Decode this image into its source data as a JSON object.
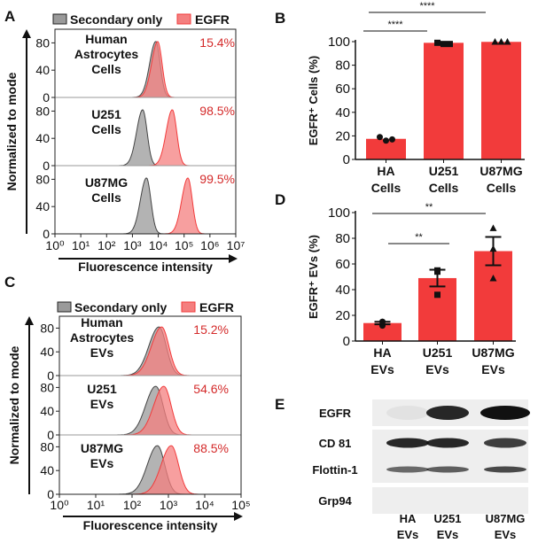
{
  "colors": {
    "red": "#f23b3b",
    "red_fill": "#f47f7f",
    "grey_fill": "#9a9a9a",
    "red_text": "#d42a2a"
  },
  "chart_data": [
    {
      "panel": "A",
      "type": "area",
      "legend": [
        "Secondary only",
        "EGFR"
      ],
      "ylabel": "Normalized to mode",
      "xlabel": "Fluorescence intensity",
      "x_scale": "log",
      "xlim": [
        1,
        10000000
      ],
      "x_ticks": [
        "10⁰",
        "10¹",
        "10²",
        "10³",
        "10⁴",
        "10⁵",
        "10⁶",
        "10⁷"
      ],
      "y_ticks": [
        "0",
        "40",
        "80"
      ],
      "ylim": [
        0,
        100
      ],
      "rows": [
        {
          "label": [
            "Human",
            "Astrocytes",
            "Cells"
          ],
          "percent": "15.4%",
          "secondary_peak": 8000,
          "egfr_peak": 9500
        },
        {
          "label": [
            "U251",
            "Cells"
          ],
          "percent": "98.5%",
          "secondary_peak": 2500,
          "egfr_peak": 35000
        },
        {
          "label": [
            "U87MG",
            "Cells"
          ],
          "percent": "99.5%",
          "secondary_peak": 3500,
          "egfr_peak": 140000
        }
      ]
    },
    {
      "panel": "B",
      "type": "bar",
      "ylabel": "EGFR⁺ Cells  (%)",
      "ylim": [
        0,
        100
      ],
      "y_ticks": [
        "0",
        "20",
        "40",
        "60",
        "80",
        "100"
      ],
      "categories": [
        [
          "HA",
          "Cells"
        ],
        [
          "U251",
          "Cells"
        ],
        [
          "U87MG",
          "Cells"
        ]
      ],
      "values": [
        17.5,
        99,
        99.8
      ],
      "points": [
        [
          19,
          16,
          17
        ],
        [
          99,
          98,
          98
        ],
        [
          100,
          100,
          100
        ]
      ],
      "markers": [
        "circle",
        "square",
        "triangle"
      ],
      "significance": [
        {
          "from": 0,
          "to": 1,
          "label": "****"
        },
        {
          "from": 0,
          "to": 2,
          "label": "****"
        }
      ]
    },
    {
      "panel": "C",
      "type": "area",
      "legend": [
        "Secondary only",
        "EGFR"
      ],
      "ylabel": "Normalized to mode",
      "xlabel": "Fluorescence intensity",
      "x_scale": "log",
      "xlim": [
        1,
        100000
      ],
      "x_ticks": [
        "10⁰",
        "10¹",
        "10²",
        "10³",
        "10⁴",
        "10⁵"
      ],
      "y_ticks": [
        "0",
        "40",
        "80"
      ],
      "ylim": [
        0,
        100
      ],
      "rows": [
        {
          "label": [
            "Human",
            "Astrocytes",
            "EVs"
          ],
          "percent": "15.2%",
          "secondary_peak": 550,
          "egfr_peak": 650
        },
        {
          "label": [
            "U251",
            "EVs"
          ],
          "percent": "54.6%",
          "secondary_peak": 450,
          "egfr_peak": 750
        },
        {
          "label": [
            "U87MG",
            "EVs"
          ],
          "percent": "88.5%",
          "secondary_peak": 500,
          "egfr_peak": 1200
        }
      ]
    },
    {
      "panel": "D",
      "type": "bar",
      "ylabel": "EGFR⁺ EVs  (%)",
      "ylim": [
        0,
        100
      ],
      "y_ticks": [
        "0",
        "20",
        "40",
        "60",
        "80",
        "100"
      ],
      "categories": [
        [
          "HA",
          "EVs"
        ],
        [
          "U251",
          "EVs"
        ],
        [
          "U87MG",
          "EVs"
        ]
      ],
      "values": [
        14,
        49,
        70
      ],
      "errors": [
        1,
        6.5,
        11
      ],
      "points": [
        [
          15,
          12,
          15
        ],
        [
          55,
          54,
          36
        ],
        [
          88,
          72,
          49
        ]
      ],
      "markers": [
        "circle",
        "square",
        "triangle"
      ],
      "significance": [
        {
          "from": 0,
          "to": 1,
          "label": "**"
        },
        {
          "from": 0,
          "to": 2,
          "label": "**"
        }
      ]
    },
    {
      "panel": "E",
      "type": "western_blot",
      "rows": [
        "EGFR",
        "CD 81",
        "Flottin-1",
        "Grp94"
      ],
      "lanes": [
        [
          "HA",
          "EVs"
        ],
        [
          "U251",
          "EVs"
        ],
        [
          "U87MG",
          "EVs"
        ]
      ],
      "band_intensity": [
        [
          0.05,
          0.9,
          1.0
        ],
        [
          0.9,
          0.9,
          0.8
        ],
        [
          0.6,
          0.65,
          0.75
        ],
        [
          0,
          0,
          0
        ]
      ]
    }
  ],
  "panel_labels": [
    "A",
    "B",
    "C",
    "D",
    "E"
  ]
}
